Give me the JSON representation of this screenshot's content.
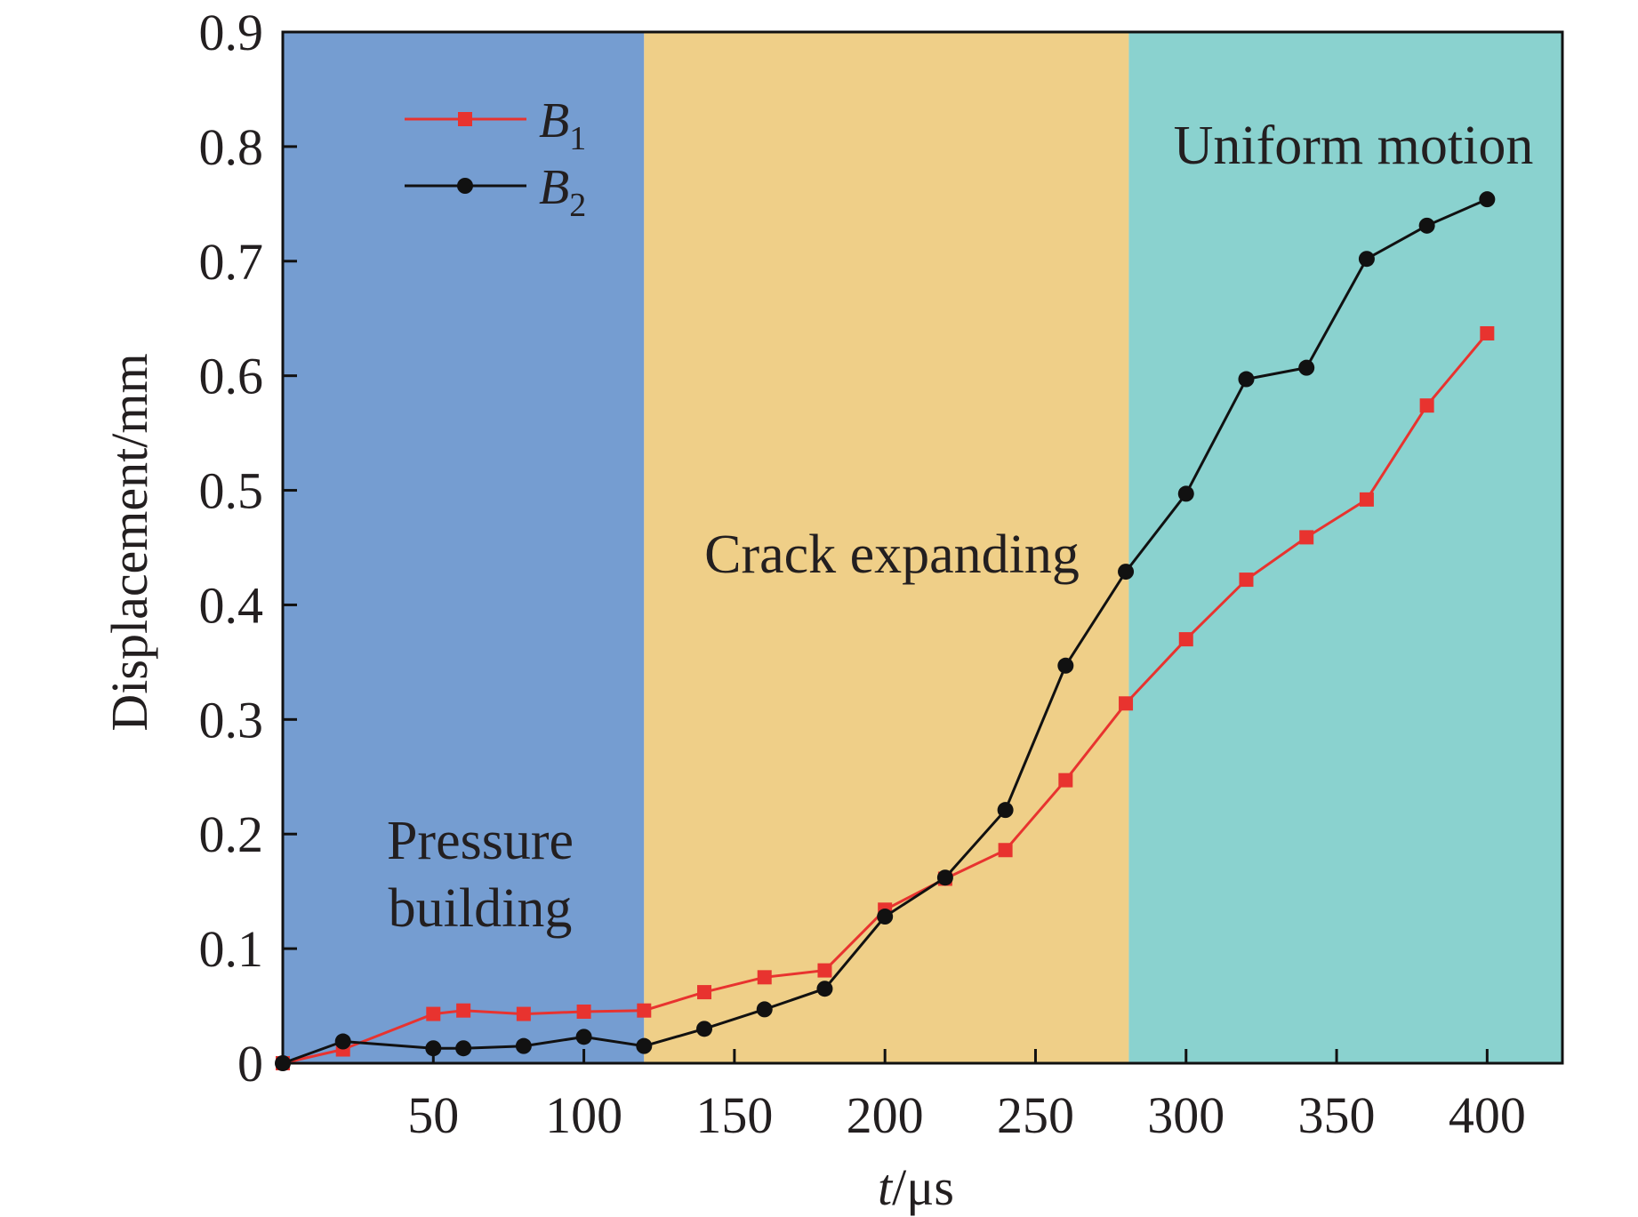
{
  "chart_data": {
    "type": "line",
    "xlabel": {
      "italic": "t",
      "rest": "/μs"
    },
    "ylabel": "Displacement/mm",
    "xlim": [
      0,
      425
    ],
    "ylim": [
      0,
      0.9
    ],
    "x_ticks": [
      50,
      100,
      150,
      200,
      250,
      300,
      350,
      400
    ],
    "y_ticks": [
      0,
      0.1,
      0.2,
      0.3,
      0.4,
      0.5,
      0.6,
      0.7,
      0.8,
      0.9
    ],
    "x_tick_labels": [
      "50",
      "100",
      "150",
      "200",
      "250",
      "300",
      "350",
      "400"
    ],
    "y_tick_labels": [
      "0",
      "0.1",
      "0.2",
      "0.3",
      "0.4",
      "0.5",
      "0.6",
      "0.7",
      "0.8",
      "0.9"
    ],
    "grid": false,
    "legend_position": "top-left",
    "regions": [
      {
        "from": 0,
        "to": 120,
        "color": "#759dd1",
        "label_lines": [
          "Pressure",
          "building"
        ]
      },
      {
        "from": 120,
        "to": 281,
        "color": "#efcf88",
        "label_lines": [
          "Crack expanding"
        ]
      },
      {
        "from": 281,
        "to": 425,
        "color": "#8ad2cf",
        "label_lines": [
          "Uniform motion"
        ]
      }
    ],
    "series": [
      {
        "name": "B1",
        "legend_main": "B",
        "legend_sub": "1",
        "color": "#e8332f",
        "marker": "square",
        "x": [
          0,
          20,
          50,
          60,
          80,
          100,
          120,
          140,
          160,
          180,
          200,
          220,
          240,
          260,
          280,
          300,
          320,
          340,
          360,
          380,
          400
        ],
        "y": [
          0,
          0.012,
          0.043,
          0.046,
          0.043,
          0.045,
          0.046,
          0.062,
          0.075,
          0.081,
          0.134,
          0.161,
          0.186,
          0.247,
          0.314,
          0.37,
          0.422,
          0.459,
          0.492,
          0.574,
          0.637
        ]
      },
      {
        "name": "B2",
        "legend_main": "B",
        "legend_sub": "2",
        "color": "#111111",
        "marker": "circle",
        "x": [
          0,
          20,
          50,
          60,
          80,
          100,
          120,
          140,
          160,
          180,
          200,
          220,
          240,
          260,
          280,
          300,
          320,
          340,
          360,
          380,
          400
        ],
        "y": [
          0,
          0.019,
          0.013,
          0.013,
          0.015,
          0.023,
          0.015,
          0.03,
          0.047,
          0.065,
          0.128,
          0.162,
          0.221,
          0.347,
          0.429,
          0.497,
          0.597,
          0.607,
          0.702,
          0.731,
          0.754
        ]
      }
    ]
  }
}
